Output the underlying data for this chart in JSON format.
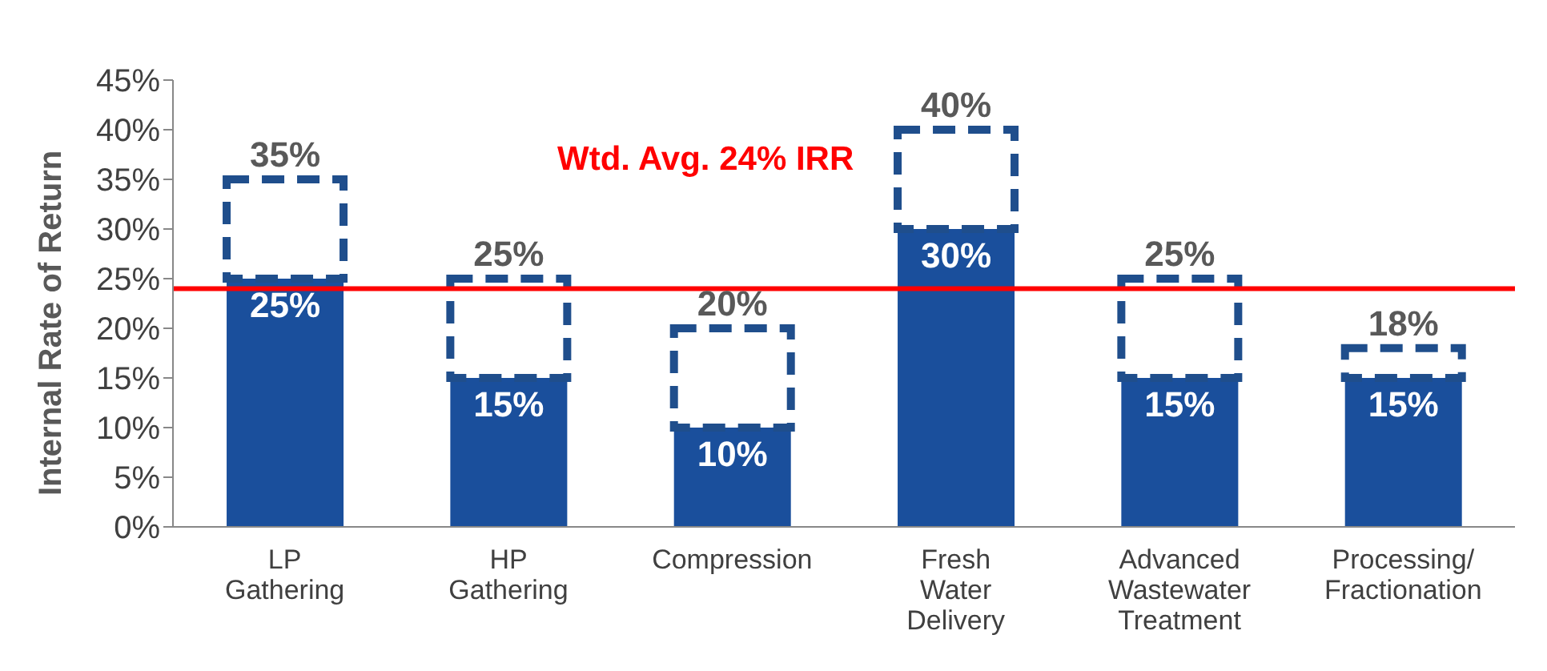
{
  "chart_data": {
    "type": "bar",
    "stacked": true,
    "totals": [
      "35%",
      "25%",
      "20%",
      "40%",
      "25%",
      "18%"
    ],
    "ylabel": "Internal Rate of Return",
    "categories": [
      "LP\nGathering",
      "HP\nGathering",
      "Compression",
      "Fresh\nWater\nDelivery",
      "Advanced\nWastewater\nTreatment",
      "Processing/\nFractionation"
    ],
    "series": [
      {
        "color": "#1a4f9c",
        "line_style": "solid",
        "values": [
          25,
          15,
          10,
          30,
          15,
          15
        ],
        "value_labels": [
          "25%",
          "15%",
          "10%",
          "30%",
          "15%",
          "15%"
        ]
      },
      {
        "color": "#1f4e8c",
        "line_style": "dashed",
        "values": [
          10,
          10,
          10,
          10,
          10,
          3
        ]
      }
    ],
    "ylim": [
      0,
      45
    ],
    "yticks": [
      {
        "value": 0,
        "label": "0%"
      },
      {
        "value": 5,
        "label": "5%"
      },
      {
        "value": 10,
        "label": "10%"
      },
      {
        "value": 15,
        "label": "15%"
      },
      {
        "value": 20,
        "label": "20%"
      },
      {
        "value": 25,
        "label": "25%"
      },
      {
        "value": 30,
        "label": "30%"
      },
      {
        "value": 35,
        "label": "35%"
      },
      {
        "value": 40,
        "label": "40%"
      },
      {
        "value": 45,
        "label": "45%"
      }
    ],
    "ref_lines": [
      {
        "axis": "y",
        "value": 24,
        "label": "Wtd. Avg. 24% IRR",
        "color": "#ff0000"
      }
    ],
    "grid": false,
    "legend": false
  }
}
